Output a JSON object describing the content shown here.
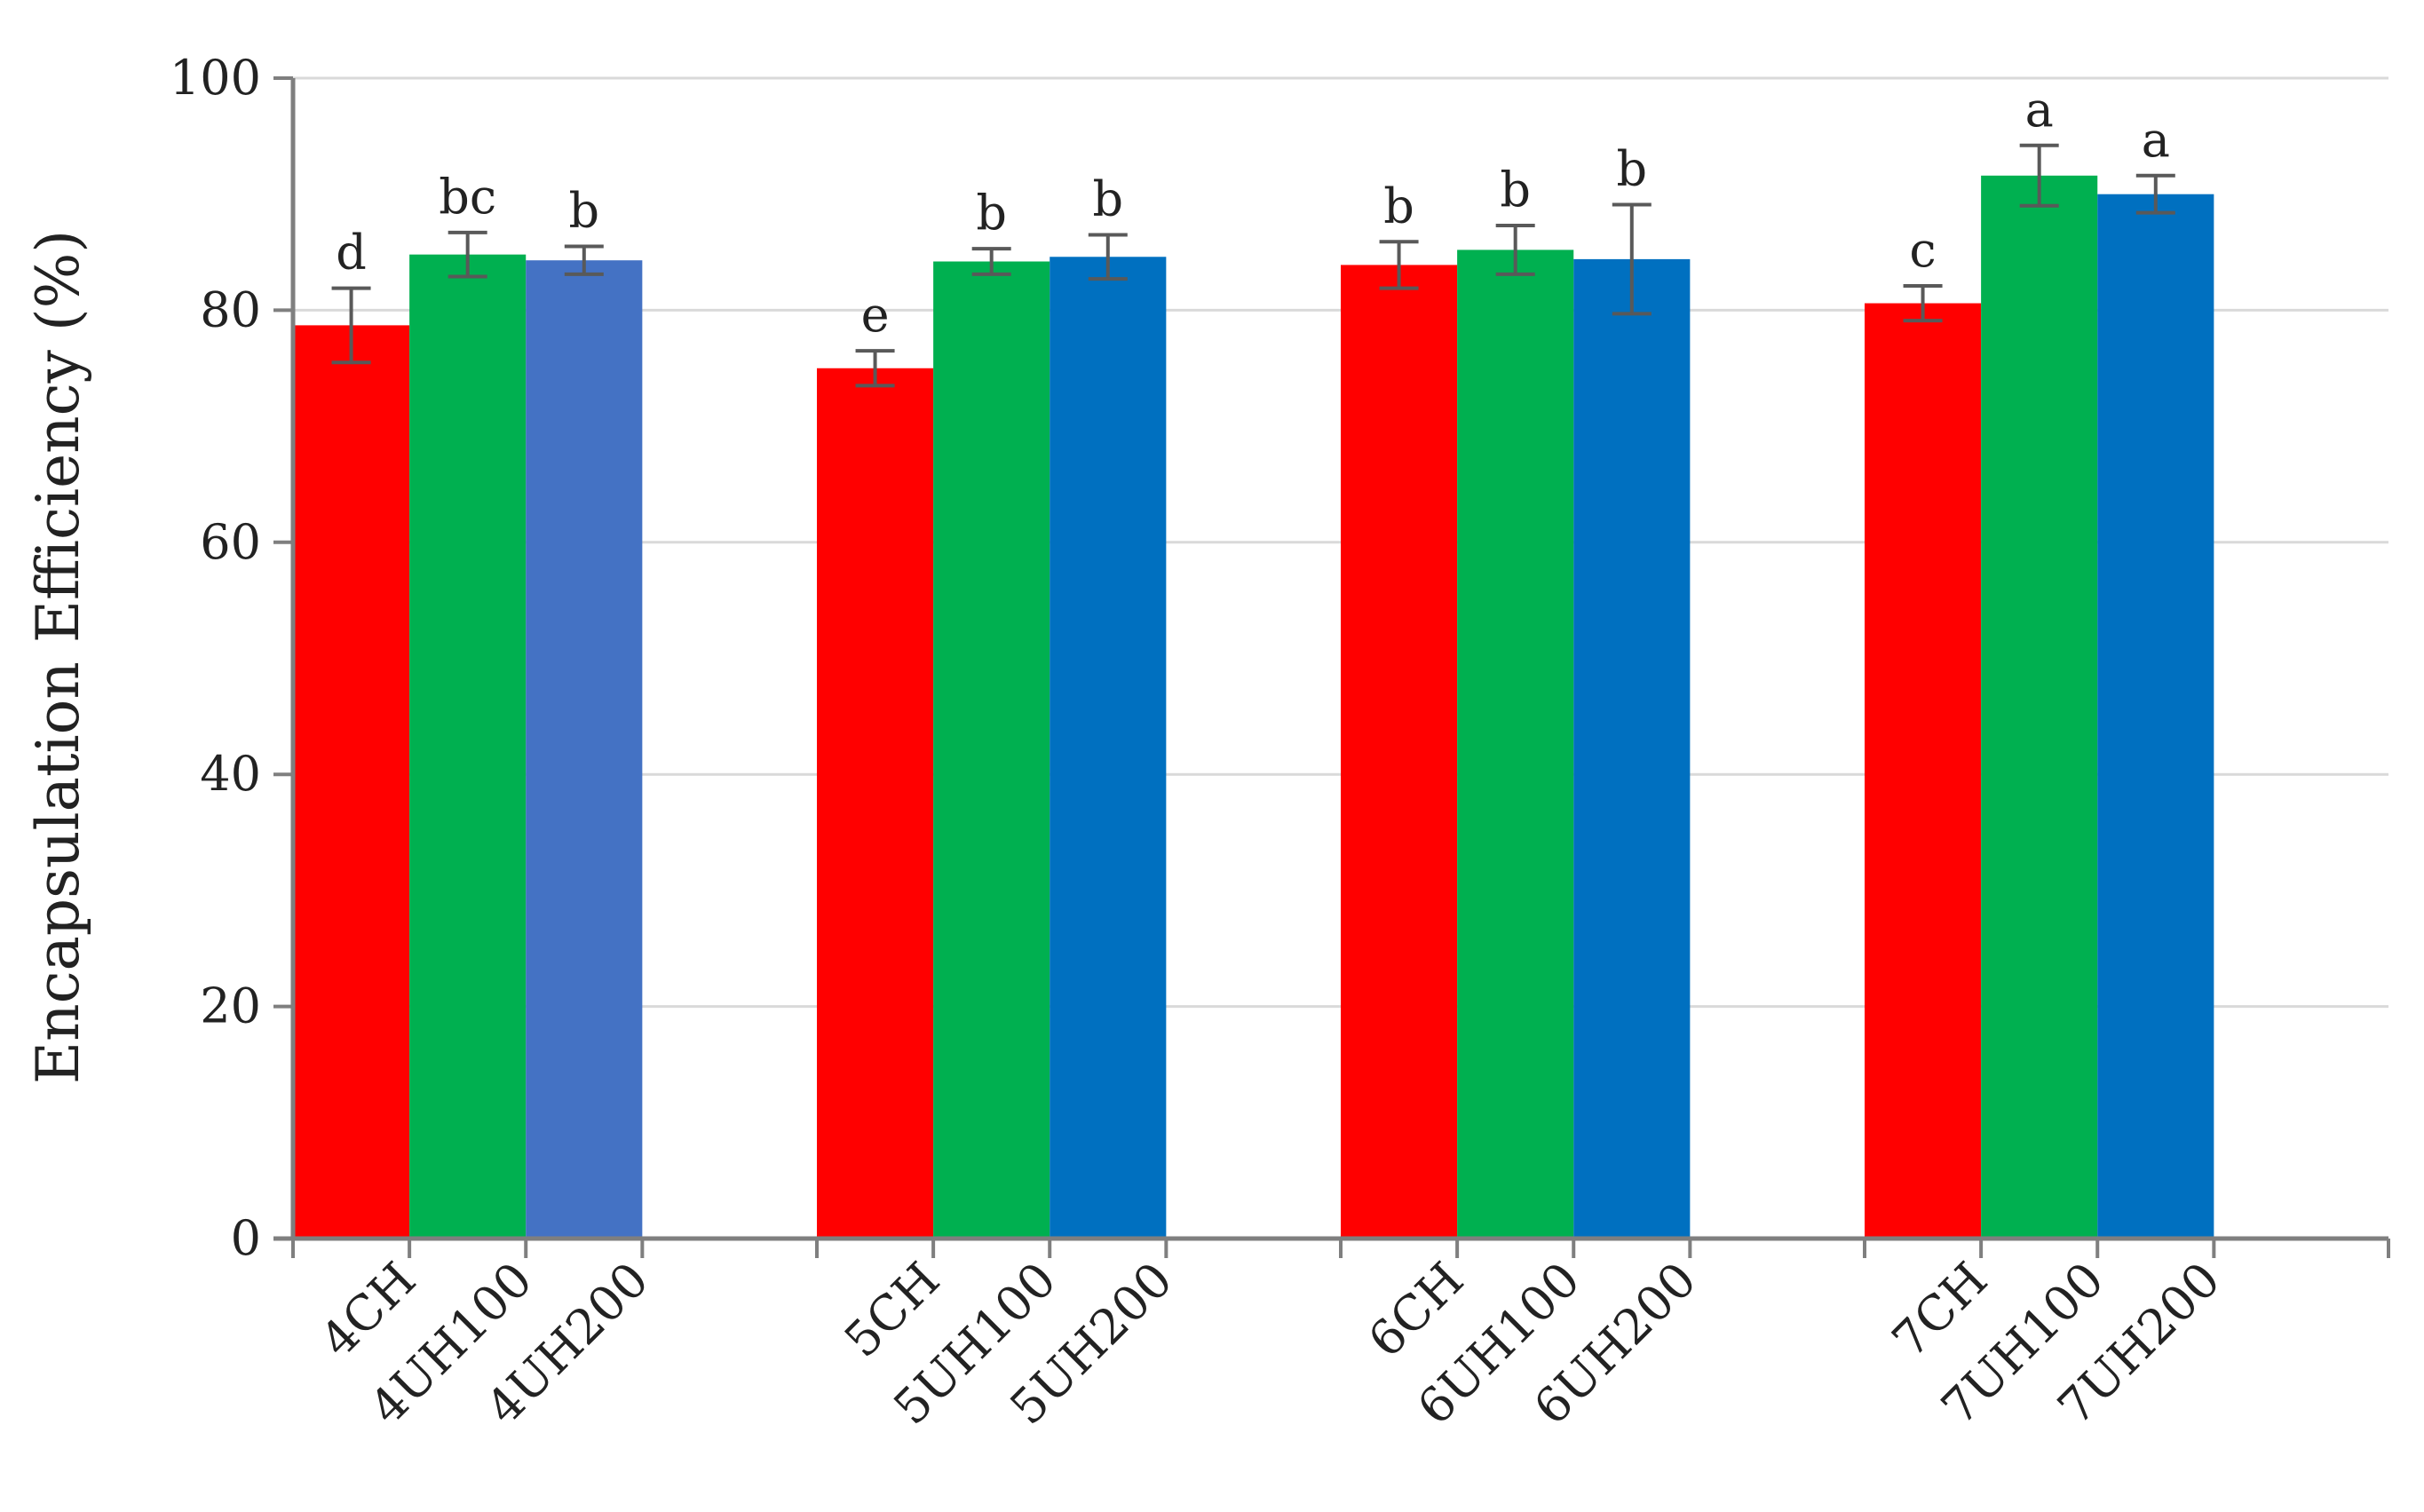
{
  "chart_data": {
    "type": "bar",
    "title": "",
    "xlabel": "",
    "ylabel": "Encapsulation Efficiency (%)",
    "ylim": [
      0,
      100
    ],
    "yticks": [
      "0",
      "20",
      "40",
      "60",
      "80",
      "100"
    ],
    "grid": true,
    "groups": [
      {
        "bars": [
          {
            "category": "4CH",
            "value": 78.7,
            "error": 3.2,
            "label": "d",
            "color": "#ff0000"
          },
          {
            "category": "4UH100",
            "value": 84.8,
            "error": 1.9,
            "label": "bc",
            "color": "#00b050"
          },
          {
            "category": "4UH200",
            "value": 84.3,
            "error": 1.2,
            "label": "b",
            "color": "#4472c4"
          }
        ]
      },
      {
        "bars": [
          {
            "category": "5CH",
            "value": 75.0,
            "error": 1.5,
            "label": "e",
            "color": "#ff0000"
          },
          {
            "category": "5UH100",
            "value": 84.2,
            "error": 1.1,
            "label": "b",
            "color": "#00b050"
          },
          {
            "category": "5UH200",
            "value": 84.6,
            "error": 1.9,
            "label": "b",
            "color": "#0070c0"
          }
        ]
      },
      {
        "bars": [
          {
            "category": "6CH",
            "value": 83.9,
            "error": 2.0,
            "label": "b",
            "color": "#ff0000"
          },
          {
            "category": "6UH100",
            "value": 85.2,
            "error": 2.1,
            "label": "b",
            "color": "#00b050"
          },
          {
            "category": "6UH200",
            "value": 84.4,
            "error": 4.7,
            "label": "b",
            "color": "#0070c0"
          }
        ]
      },
      {
        "bars": [
          {
            "category": "7CH",
            "value": 80.6,
            "error": 1.5,
            "label": "c",
            "color": "#ff0000"
          },
          {
            "category": "7UH100",
            "value": 91.6,
            "error": 2.6,
            "label": "a",
            "color": "#00b050"
          },
          {
            "category": "7UH200",
            "value": 90.0,
            "error": 1.6,
            "label": "a",
            "color": "#0070c0"
          }
        ]
      }
    ]
  }
}
